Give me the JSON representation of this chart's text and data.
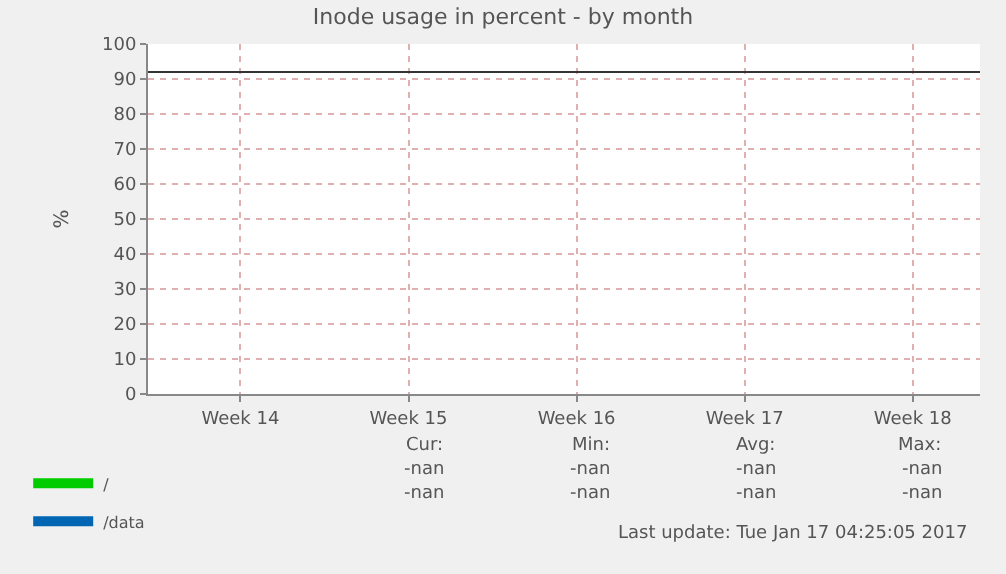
{
  "chart_data": {
    "type": "line",
    "title": "Inode usage in percent - by month",
    "ylabel": "%",
    "categories": [
      "Week 14",
      "Week 15",
      "Week 16",
      "Week 17",
      "Week 18"
    ],
    "series": [
      {
        "name": "/",
        "color": "#00cc00",
        "values": [
          null,
          null,
          null,
          null,
          null
        ]
      },
      {
        "name": "/data",
        "color": "#0066b3",
        "values": [
          null,
          null,
          null,
          null,
          null
        ]
      }
    ],
    "ylim": [
      0,
      100
    ],
    "yticks": [
      0,
      10,
      20,
      30,
      40,
      50,
      60,
      70,
      80,
      90,
      100
    ],
    "ref_lines": [
      {
        "axis": "y",
        "value": 92,
        "color": "#333333"
      }
    ],
    "grid": true,
    "legend": "bottom left",
    "annotations": [
      "Cur:",
      "Min:",
      "Avg:",
      "Max:",
      "-nan",
      "-nan",
      "-nan",
      "-nan",
      "-nan",
      "-nan",
      "-nan",
      "-nan",
      "Last update: Tue Jan 17 04:25:05 2017"
    ]
  }
}
